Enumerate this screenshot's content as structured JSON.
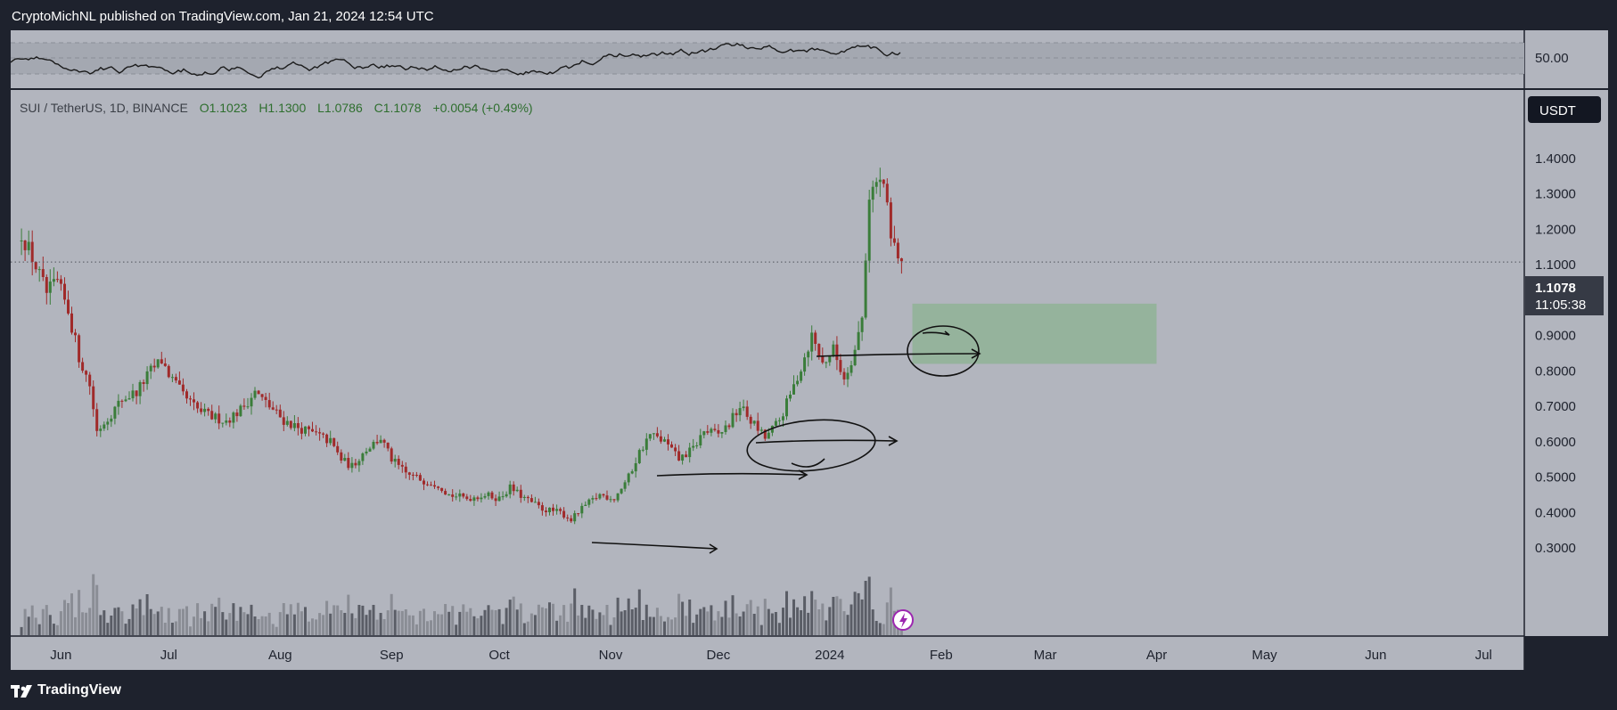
{
  "header": {
    "publisher_text": "CryptoMichNL published on TradingView.com, Jan 21, 2024 12:54 UTC"
  },
  "footer": {
    "brand": "TradingView"
  },
  "colors": {
    "background": "#b2b5be",
    "frame": "#1e222d",
    "up": "#3a7d3a",
    "down": "#a02a2a",
    "zone": "#8fb397"
  },
  "chart_data": {
    "type": "candlestick",
    "symbol_line": {
      "symbol": "SUI / TetherUS, 1D, BINANCE",
      "open": "O1.1023",
      "high": "H1.1300",
      "low": "L1.0786",
      "close": "C1.1078",
      "change": "+0.0054 (+0.49%)"
    },
    "currency_badge": "USDT",
    "last_price": "1.1078",
    "countdown": "11:05:38",
    "y_ticks": [
      "1.4000",
      "1.3000",
      "1.2000",
      "1.1000",
      "1.0000",
      "0.9000",
      "0.8000",
      "0.7000",
      "0.6000",
      "0.5000",
      "0.4000",
      "0.3000"
    ],
    "ylim": [
      0.27,
      1.52
    ],
    "x_ticks": [
      "Jun",
      "Jul",
      "Aug",
      "Sep",
      "Oct",
      "Nov",
      "Dec",
      "2024",
      "Feb",
      "Mar",
      "Apr",
      "May",
      "Jun",
      "Jul"
    ],
    "indicator_label": "50.00",
    "price_path": [
      [
        "2023-05-21",
        1.19
      ],
      [
        "2023-05-24",
        1.12
      ],
      [
        "2023-05-28",
        1.02
      ],
      [
        "2023-05-31",
        1.05
      ],
      [
        "2023-06-03",
        0.97
      ],
      [
        "2023-06-06",
        0.84
      ],
      [
        "2023-06-09",
        0.76
      ],
      [
        "2023-06-11",
        0.63
      ],
      [
        "2023-06-15",
        0.68
      ],
      [
        "2023-06-18",
        0.72
      ],
      [
        "2023-06-22",
        0.74
      ],
      [
        "2023-06-26",
        0.8
      ],
      [
        "2023-06-29",
        0.83
      ],
      [
        "2023-07-01",
        0.79
      ],
      [
        "2023-07-05",
        0.73
      ],
      [
        "2023-07-09",
        0.69
      ],
      [
        "2023-07-13",
        0.67
      ],
      [
        "2023-07-17",
        0.66
      ],
      [
        "2023-07-21",
        0.69
      ],
      [
        "2023-07-25",
        0.74
      ],
      [
        "2023-07-29",
        0.7
      ],
      [
        "2023-08-02",
        0.66
      ],
      [
        "2023-08-06",
        0.64
      ],
      [
        "2023-08-11",
        0.62
      ],
      [
        "2023-08-15",
        0.6
      ],
      [
        "2023-08-18",
        0.55
      ],
      [
        "2023-08-21",
        0.53
      ],
      [
        "2023-08-25",
        0.58
      ],
      [
        "2023-08-29",
        0.61
      ],
      [
        "2023-09-01",
        0.55
      ],
      [
        "2023-09-05",
        0.51
      ],
      [
        "2023-09-10",
        0.49
      ],
      [
        "2023-09-14",
        0.48
      ],
      [
        "2023-09-17",
        0.45
      ],
      [
        "2023-09-22",
        0.44
      ],
      [
        "2023-09-27",
        0.45
      ],
      [
        "2023-10-01",
        0.44
      ],
      [
        "2023-10-04",
        0.47
      ],
      [
        "2023-10-08",
        0.44
      ],
      [
        "2023-10-13",
        0.41
      ],
      [
        "2023-10-18",
        0.4
      ],
      [
        "2023-10-21",
        0.38
      ],
      [
        "2023-10-25",
        0.42
      ],
      [
        "2023-10-29",
        0.45
      ],
      [
        "2023-11-02",
        0.44
      ],
      [
        "2023-11-06",
        0.5
      ],
      [
        "2023-11-09",
        0.57
      ],
      [
        "2023-11-12",
        0.62
      ],
      [
        "2023-11-16",
        0.6
      ],
      [
        "2023-11-20",
        0.55
      ],
      [
        "2023-11-24",
        0.58
      ],
      [
        "2023-11-27",
        0.63
      ],
      [
        "2023-12-01",
        0.62
      ],
      [
        "2023-12-04",
        0.65
      ],
      [
        "2023-12-07",
        0.7
      ],
      [
        "2023-12-10",
        0.66
      ],
      [
        "2023-12-14",
        0.61
      ],
      [
        "2023-12-18",
        0.66
      ],
      [
        "2023-12-21",
        0.73
      ],
      [
        "2023-12-24",
        0.81
      ],
      [
        "2023-12-27",
        0.9
      ],
      [
        "2023-12-30",
        0.82
      ],
      [
        "2024-01-02",
        0.86
      ],
      [
        "2024-01-05",
        0.78
      ],
      [
        "2024-01-08",
        0.86
      ],
      [
        "2024-01-10",
        0.95
      ],
      [
        "2024-01-12",
        1.3
      ],
      [
        "2024-01-14",
        1.33
      ],
      [
        "2024-01-16",
        1.33
      ],
      [
        "2024-01-18",
        1.17
      ],
      [
        "2024-01-21",
        1.11
      ]
    ],
    "annotations": {
      "target_zone": [
        0.82,
        0.99
      ]
    }
  }
}
